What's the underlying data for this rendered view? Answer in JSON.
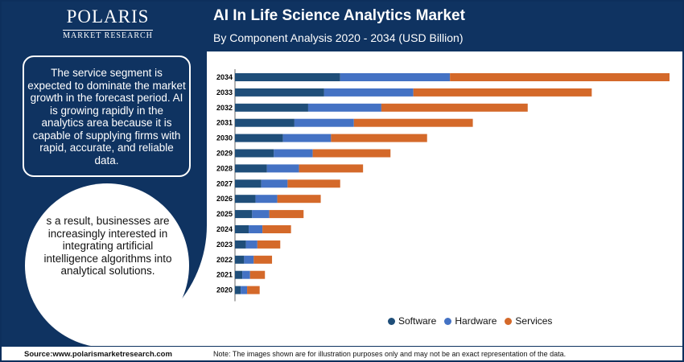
{
  "brand": {
    "name": "POLARIS",
    "tagline": "MARKET RESEARCH"
  },
  "header": {
    "title": "AI In Life Science Analytics Market",
    "subtitle": "By Component Analysis 2020 - 2034 (USD Billion)"
  },
  "panel": {
    "box_text": "The service segment is expected to dominate the market growth in the forecast period. AI is growing rapidly in the analytics area because it is capable of supplying firms with rapid, accurate, and reliable data.",
    "circle_text": "s a result, businesses are increasingly interested in integrating artificial intelligence algorithms into analytical solutions."
  },
  "footer": {
    "source": "Source:www.polarismarketresearch.com",
    "note": "Note: The images shown are for illustration purposes only and may not be an exact representation of the data."
  },
  "colors": {
    "software": "#1f4e79",
    "hardware": "#4472c4",
    "services": "#d4692a"
  },
  "chart_data": {
    "type": "bar",
    "orientation": "horizontal",
    "stacked": true,
    "title": "AI In Life Science Analytics Market",
    "subtitle": "By Component Analysis 2020 - 2034 (USD Billion)",
    "categories": [
      "2034",
      "2033",
      "2032",
      "2031",
      "2030",
      "2029",
      "2028",
      "2027",
      "2026",
      "2025",
      "2024",
      "2023",
      "2022",
      "2021",
      "2020"
    ],
    "series": [
      {
        "name": "Software",
        "color": "#1f4e79",
        "values": [
          4.6,
          3.9,
          3.2,
          2.6,
          2.1,
          1.7,
          1.4,
          1.15,
          0.9,
          0.75,
          0.6,
          0.48,
          0.4,
          0.32,
          0.25
        ]
      },
      {
        "name": "Hardware",
        "color": "#4472c4",
        "values": [
          4.8,
          3.9,
          3.2,
          2.6,
          2.1,
          1.7,
          1.4,
          1.15,
          0.95,
          0.75,
          0.6,
          0.5,
          0.42,
          0.34,
          0.28
        ]
      },
      {
        "name": "Services",
        "color": "#d4692a",
        "values": [
          9.6,
          7.8,
          6.4,
          5.2,
          4.2,
          3.4,
          2.8,
          2.3,
          1.9,
          1.5,
          1.25,
          1.0,
          0.8,
          0.65,
          0.55
        ]
      }
    ],
    "xlim": [
      0,
      19
    ],
    "grid": false,
    "legend": "bottom"
  }
}
